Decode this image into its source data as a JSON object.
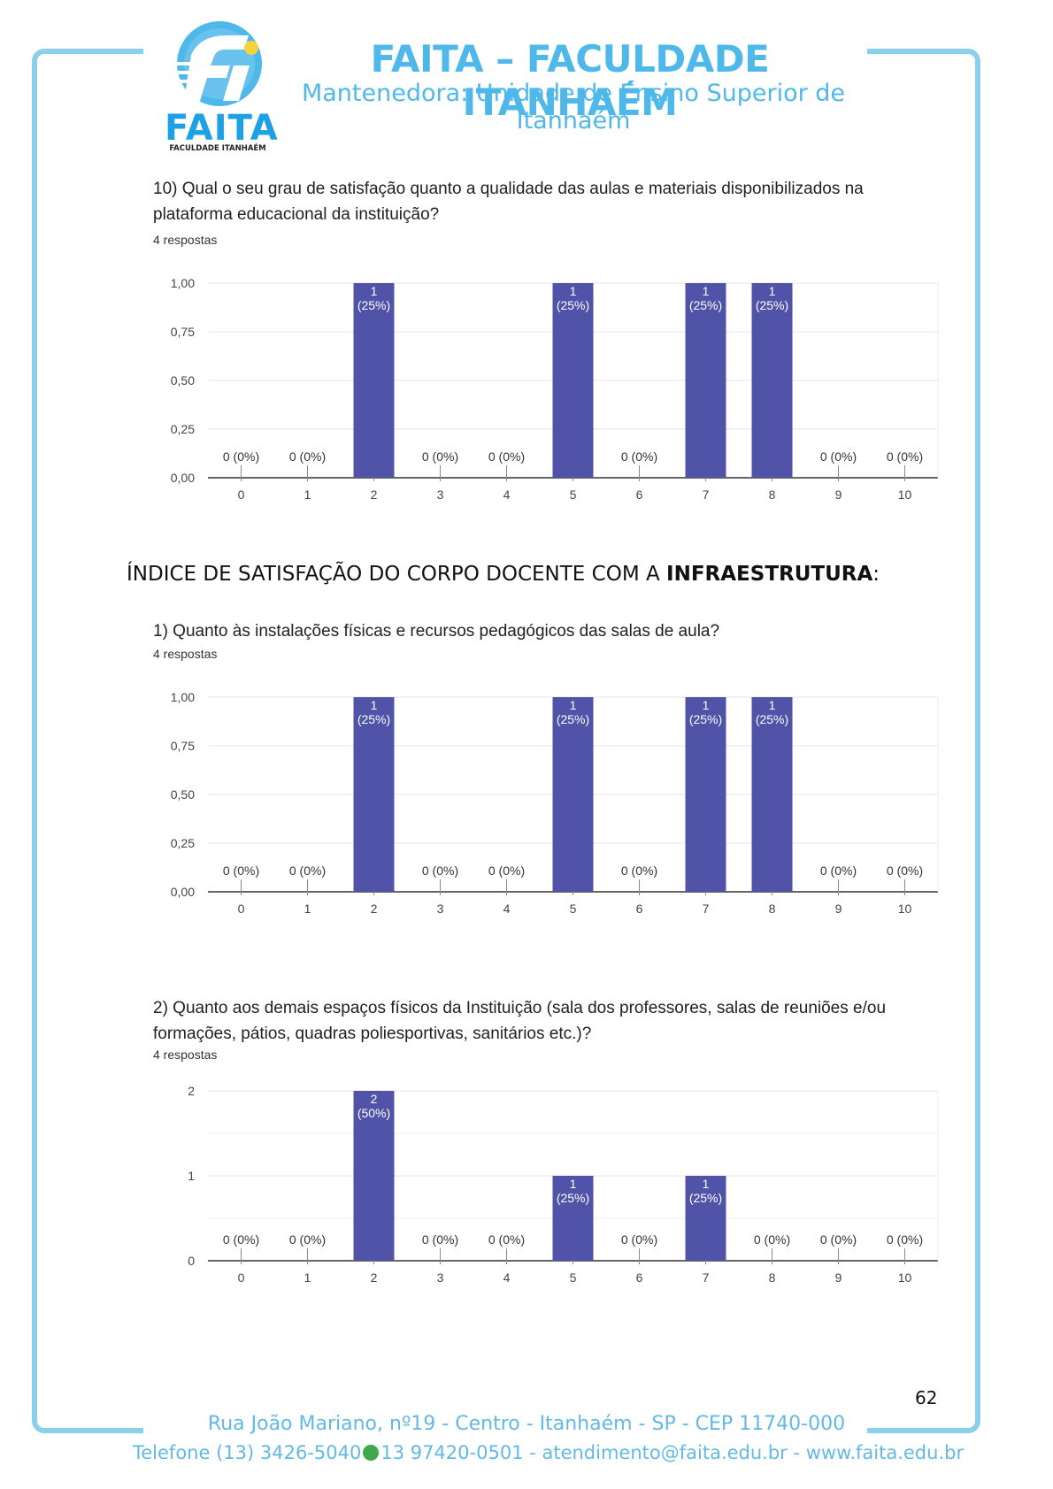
{
  "header": {
    "logo_word": "FAITA",
    "logo_sub": "FACULDADE ITANHAÉM",
    "institution": "FAITA – FACULDADE ITANHAÉM",
    "maintainer": "Mantenedora: Unidade de Ensino Superior de Itanhaém"
  },
  "section_title_pre": "ÍNDICE DE SATISFAÇÃO DO CORPO DOCENTE COM A ",
  "section_title_bold": "INFRAESTRUTURA",
  "section_title_post": ":",
  "questions": [
    {
      "text": "10) Qual o seu grau de satisfação quanto a qualidade das aulas e materiais disponibilizados na plataforma educacional da instituição?",
      "responses": "4 respostas"
    },
    {
      "text": "1) Quanto às instalações físicas e recursos pedagógicos das salas de aula?",
      "responses": "4 respostas"
    },
    {
      "text": "2) Quanto aos demais espaços físicos da Instituição (sala dos professores, salas de reuniões e/ou formações, pátios, quadras poliesportivas, sanitários etc.)?",
      "responses": "4 respostas"
    }
  ],
  "chart_data": [
    {
      "type": "bar",
      "categories": [
        "0",
        "1",
        "2",
        "3",
        "4",
        "5",
        "6",
        "7",
        "8",
        "9",
        "10"
      ],
      "values": [
        0,
        0,
        1,
        0,
        0,
        1,
        0,
        1,
        1,
        0,
        0
      ],
      "data_labels": [
        "0 (0%)",
        "0 (0%)",
        "1 (25%)",
        "0 (0%)",
        "0 (0%)",
        "1 (25%)",
        "0 (0%)",
        "1 (25%)",
        "1 (25%)",
        "0 (0%)",
        "0 (0%)"
      ],
      "ylim": [
        0,
        1
      ],
      "yticks": [
        "0,00",
        "0,25",
        "0,50",
        "0,75",
        "1,00"
      ],
      "ytick_values": [
        0,
        0.25,
        0.5,
        0.75,
        1
      ],
      "grid": true,
      "color": "#5053a8"
    },
    {
      "type": "bar",
      "categories": [
        "0",
        "1",
        "2",
        "3",
        "4",
        "5",
        "6",
        "7",
        "8",
        "9",
        "10"
      ],
      "values": [
        0,
        0,
        1,
        0,
        0,
        1,
        0,
        1,
        1,
        0,
        0
      ],
      "data_labels": [
        "0 (0%)",
        "0 (0%)",
        "1 (25%)",
        "0 (0%)",
        "0 (0%)",
        "1 (25%)",
        "0 (0%)",
        "1 (25%)",
        "1 (25%)",
        "0 (0%)",
        "0 (0%)"
      ],
      "ylim": [
        0,
        1
      ],
      "yticks": [
        "0,00",
        "0,25",
        "0,50",
        "0,75",
        "1,00"
      ],
      "ytick_values": [
        0,
        0.25,
        0.5,
        0.75,
        1
      ],
      "grid": true,
      "color": "#5053a8"
    },
    {
      "type": "bar",
      "categories": [
        "0",
        "1",
        "2",
        "3",
        "4",
        "5",
        "6",
        "7",
        "8",
        "9",
        "10"
      ],
      "values": [
        0,
        0,
        2,
        0,
        0,
        1,
        0,
        1,
        0,
        0,
        0
      ],
      "data_labels": [
        "0 (0%)",
        "0 (0%)",
        "2 (50%)",
        "0 (0%)",
        "0 (0%)",
        "1 (25%)",
        "0 (0%)",
        "1 (25%)",
        "0 (0%)",
        "0 (0%)",
        "0 (0%)"
      ],
      "ylim": [
        0,
        2
      ],
      "yticks": [
        "0",
        "1",
        "2"
      ],
      "ytick_values": [
        0,
        1,
        2
      ],
      "grid": true,
      "color": "#5053a8"
    }
  ],
  "page_number": "62",
  "footer": {
    "address": "Rua João Mariano, nº19 - Centro - Itanhaém - SP - CEP 11740-000",
    "phone_pre": "Telefone (13) 3426-5040",
    "phone_post": "13 97420-0501 - atendimento@faita.edu.br - www.faita.edu.br"
  }
}
